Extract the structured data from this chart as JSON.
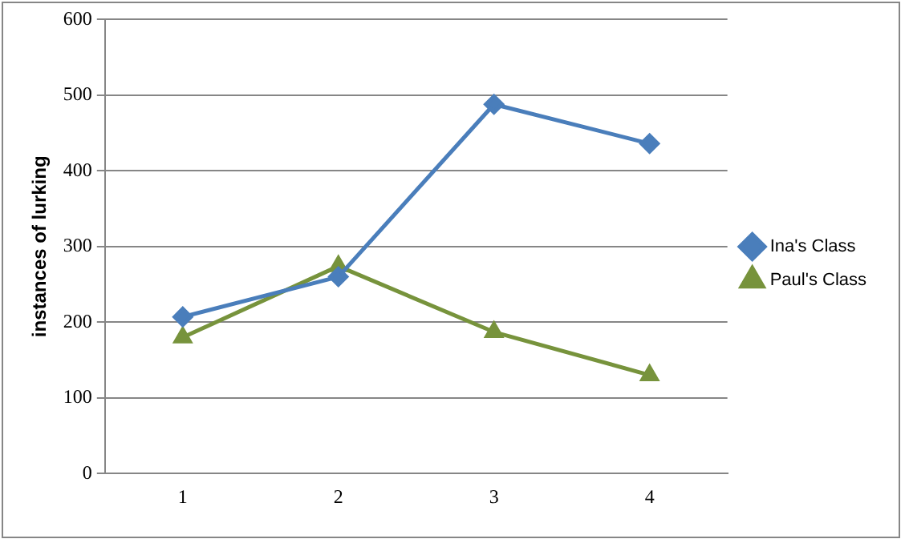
{
  "chart_data": {
    "type": "line",
    "ylabel": "instances of lurking",
    "categories": [
      "1",
      "2",
      "3",
      "4"
    ],
    "series": [
      {
        "name": "Ina's Class",
        "color": "#4a7ebb",
        "marker": "diamond",
        "values": [
          207,
          260,
          488,
          436
        ]
      },
      {
        "name": "Paul's Class",
        "color": "#77933c",
        "marker": "triangle",
        "values": [
          180,
          274,
          187,
          130
        ]
      }
    ],
    "ylim": [
      0,
      600
    ],
    "yticks": [
      0,
      100,
      200,
      300,
      400,
      500,
      600
    ],
    "grid": "y",
    "legend": "right",
    "line_style": "solid"
  }
}
